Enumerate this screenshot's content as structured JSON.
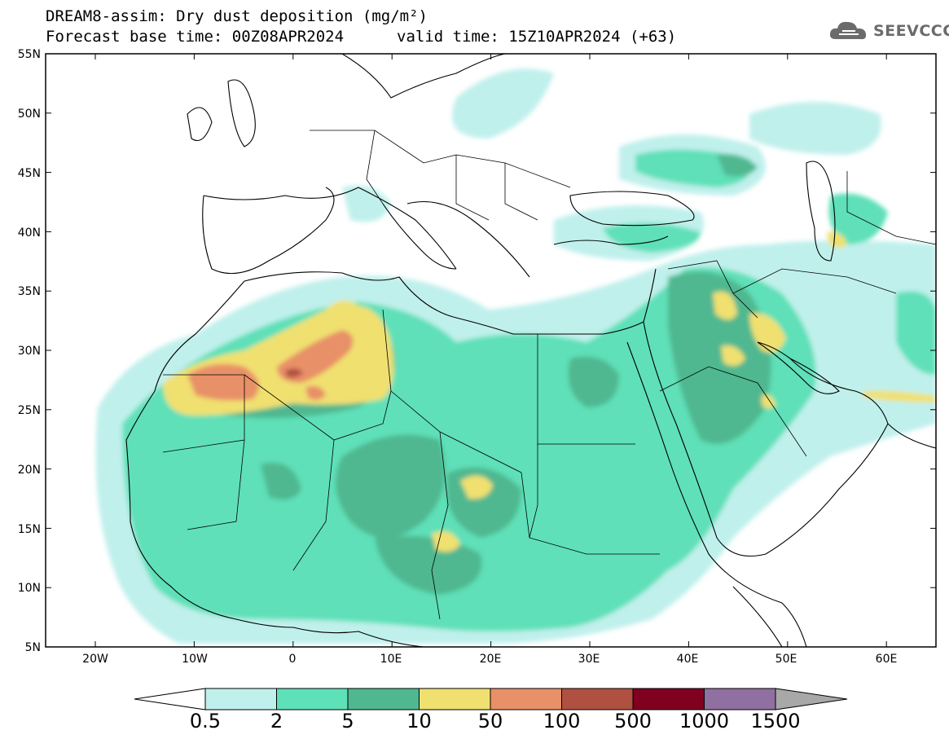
{
  "header": {
    "title_line1": "DREAM8-assim: Dry dust deposition (mg/m²)",
    "forecast_base": "Forecast base time: 00Z08APR2024",
    "valid_time": "valid time: 15Z10APR2024 (+63)",
    "logo_text": "SEEVCCC"
  },
  "map": {
    "lat_labels": [
      "55N",
      "50N",
      "45N",
      "40N",
      "35N",
      "30N",
      "25N",
      "20N",
      "15N",
      "10N",
      "5N"
    ],
    "lon_labels": [
      "20W",
      "10W",
      "0",
      "10E",
      "20E",
      "30E",
      "40E",
      "50E",
      "60E"
    ],
    "ocean_color": "#ffffff",
    "border_color": "#000000"
  },
  "colorbar": {
    "colors": [
      "#c0f0ec",
      "#5ee0b8",
      "#50b890",
      "#f0e070",
      "#e89068",
      "#b05040",
      "#800020",
      "#9070a0"
    ],
    "under_color": "#ffffff",
    "over_color": "#a8a8a8",
    "tick_labels": [
      "0.5",
      "2",
      "5",
      "10",
      "50",
      "100",
      "500",
      "1000",
      "1500"
    ]
  }
}
